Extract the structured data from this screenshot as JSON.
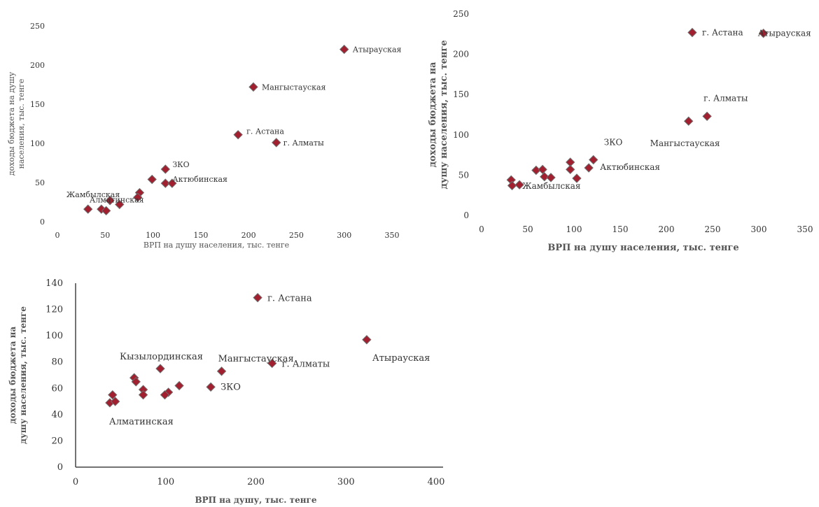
{
  "colors": {
    "marker": "#a11f2f",
    "marker_stroke": "#6e6e6e",
    "text": "#333333"
  },
  "chart_data": [
    {
      "type": "scatter",
      "xlabel": "ВРП на душу населения, тыс. тенге",
      "ylabel": "доходы бюджета на душу населения, тыс. тенге",
      "xlim": [
        0,
        350
      ],
      "ylim": [
        0,
        250
      ],
      "xticks": [
        "0",
        "50",
        "100",
        "150",
        "200",
        "250",
        "300",
        "350"
      ],
      "yticks": [
        "0",
        "50",
        "100",
        "150",
        "200",
        "250"
      ],
      "grid": false,
      "points": [
        {
          "x": 300,
          "y": 220,
          "label": "Атырауская"
        },
        {
          "x": 205,
          "y": 172,
          "label": "Мангыстауская"
        },
        {
          "x": 189,
          "y": 111,
          "label": "г. Астана"
        },
        {
          "x": 229,
          "y": 101,
          "label": "г. Алматы"
        },
        {
          "x": 113,
          "y": 67,
          "label": "ЗКО"
        },
        {
          "x": 113,
          "y": 49,
          "label": "Актюбинская"
        },
        {
          "x": 120,
          "y": 49,
          "label": ""
        },
        {
          "x": 99,
          "y": 54,
          "label": ""
        },
        {
          "x": 86,
          "y": 37,
          "label": ""
        },
        {
          "x": 84,
          "y": 31,
          "label": ""
        },
        {
          "x": 65,
          "y": 22,
          "label": "Алматинская"
        },
        {
          "x": 55,
          "y": 27,
          "label": "Жамбылская"
        },
        {
          "x": 46,
          "y": 16,
          "label": ""
        },
        {
          "x": 51,
          "y": 14,
          "label": ""
        },
        {
          "x": 32,
          "y": 16,
          "label": ""
        }
      ]
    },
    {
      "type": "scatter",
      "xlabel": "ВРП на душу населения, тыс. тенге",
      "ylabel": "доходы бюджета на душу населения, тыс. тенге",
      "xlim": [
        0,
        350
      ],
      "ylim": [
        0,
        250
      ],
      "xticks": [
        "0",
        "50",
        "100",
        "150",
        "200",
        "250",
        "300",
        "350"
      ],
      "yticks": [
        "0",
        "50",
        "100",
        "150",
        "200",
        "250"
      ],
      "grid": false,
      "points": [
        {
          "x": 228,
          "y": 227,
          "label": "г. Астана"
        },
        {
          "x": 305,
          "y": 226,
          "label": "Атырауская"
        },
        {
          "x": 244,
          "y": 123,
          "label": "г. Алматы"
        },
        {
          "x": 224,
          "y": 117,
          "label": "Мангыстауская"
        },
        {
          "x": 121,
          "y": 69,
          "label": "ЗКО"
        },
        {
          "x": 116,
          "y": 59,
          "label": "Актюбинская"
        },
        {
          "x": 96,
          "y": 66,
          "label": ""
        },
        {
          "x": 96,
          "y": 57,
          "label": ""
        },
        {
          "x": 103,
          "y": 46,
          "label": ""
        },
        {
          "x": 59,
          "y": 56,
          "label": ""
        },
        {
          "x": 66,
          "y": 57,
          "label": ""
        },
        {
          "x": 68,
          "y": 48,
          "label": ""
        },
        {
          "x": 75,
          "y": 47,
          "label": ""
        },
        {
          "x": 32,
          "y": 44,
          "label": ""
        },
        {
          "x": 33,
          "y": 37,
          "label": ""
        },
        {
          "x": 41,
          "y": 38,
          "label": "Жамбылская"
        }
      ]
    },
    {
      "type": "scatter",
      "xlabel": "ВРП на душу, тыс. тенге",
      "ylabel": "доходы бюджета на душу населения, тыс. тенге",
      "xlim": [
        0,
        400
      ],
      "ylim": [
        0,
        140
      ],
      "xticks": [
        "0",
        "100",
        "200",
        "300",
        "400"
      ],
      "yticks": [
        "0",
        "20",
        "40",
        "60",
        "80",
        "100",
        "120",
        "140"
      ],
      "grid": false,
      "points": [
        {
          "x": 202,
          "y": 129,
          "label": "г. Астана"
        },
        {
          "x": 323,
          "y": 97,
          "label": "Атырауская"
        },
        {
          "x": 218,
          "y": 79,
          "label": "г. Алматы"
        },
        {
          "x": 162,
          "y": 73,
          "label": "Мангыстауская"
        },
        {
          "x": 150,
          "y": 61,
          "label": "ЗКО"
        },
        {
          "x": 94,
          "y": 75,
          "label": "Кызылординская"
        },
        {
          "x": 115,
          "y": 62,
          "label": ""
        },
        {
          "x": 103,
          "y": 57,
          "label": ""
        },
        {
          "x": 99,
          "y": 55,
          "label": ""
        },
        {
          "x": 65,
          "y": 68,
          "label": ""
        },
        {
          "x": 67,
          "y": 65,
          "label": ""
        },
        {
          "x": 75,
          "y": 59,
          "label": ""
        },
        {
          "x": 75,
          "y": 55,
          "label": ""
        },
        {
          "x": 41,
          "y": 55,
          "label": ""
        },
        {
          "x": 38,
          "y": 49,
          "label": "Алматинская"
        },
        {
          "x": 44,
          "y": 50,
          "label": ""
        }
      ]
    }
  ]
}
